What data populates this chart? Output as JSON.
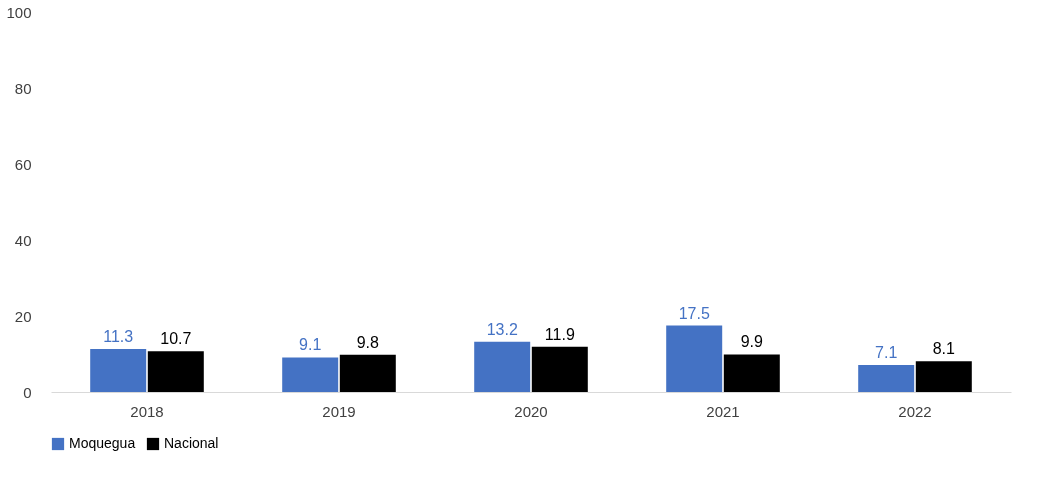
{
  "chart_data": {
    "type": "bar",
    "categories": [
      "2018",
      "2019",
      "2020",
      "2021",
      "2022"
    ],
    "series": [
      {
        "name": "Moquegua",
        "color": "#4472c4",
        "values": [
          11.3,
          9.1,
          13.2,
          17.5,
          7.1
        ]
      },
      {
        "name": "Nacional",
        "color": "#000000",
        "values": [
          10.7,
          9.8,
          11.9,
          9.9,
          8.1
        ]
      }
    ],
    "ylim": [
      0,
      100
    ],
    "yticks": [
      0,
      20,
      40,
      60,
      80,
      100
    ],
    "grid": false,
    "legend": "bottom",
    "data_labels": true
  }
}
